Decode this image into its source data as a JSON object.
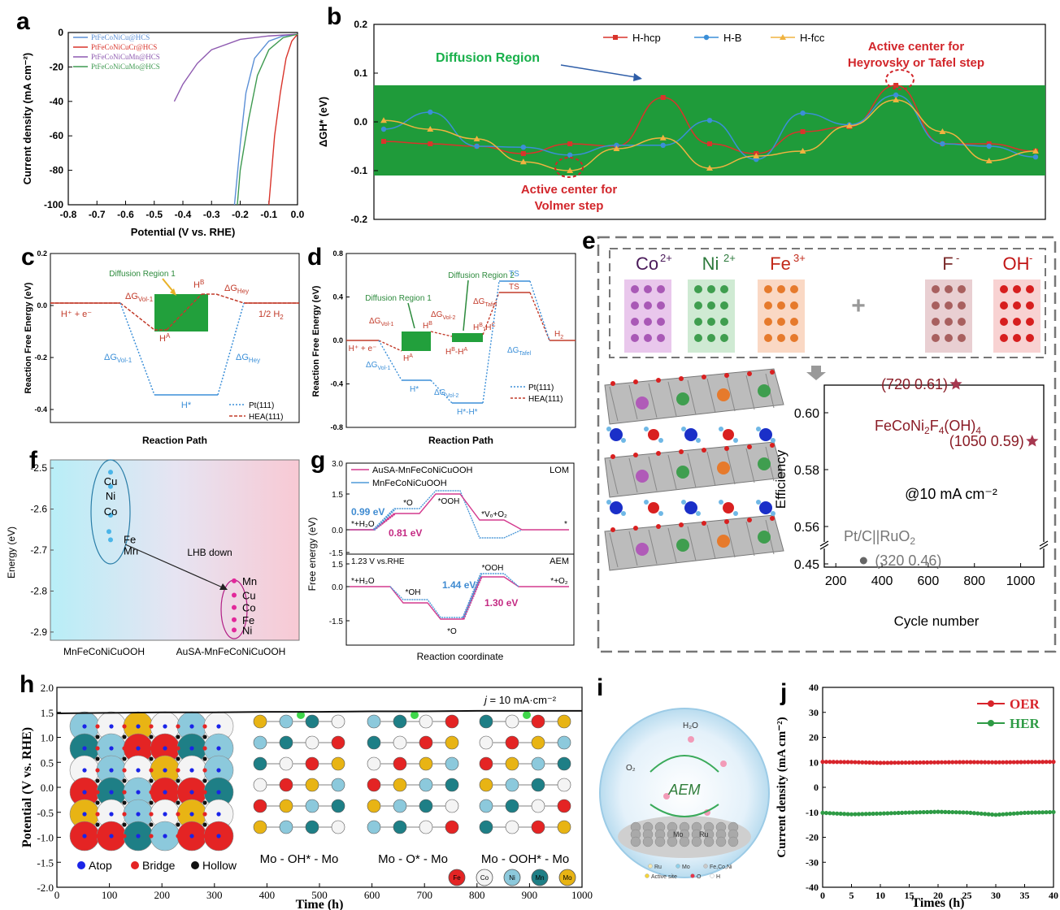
{
  "chart_data": [
    {
      "panel": "a",
      "type": "line",
      "xlabel": "Potential (V vs. RHE)",
      "ylabel": "Current density (mA cm⁻²)",
      "xlim": [
        -0.8,
        0.0
      ],
      "ylim": [
        -100,
        0
      ],
      "xticks": [
        "-0.8",
        "-0.7",
        "-0.6",
        "-0.5",
        "-0.4",
        "-0.3",
        "-0.2",
        "-0.1",
        "0.0"
      ],
      "yticks": [
        "0",
        "-20",
        "-40",
        "-60",
        "-80",
        "-100"
      ],
      "legend_position": "top-left",
      "series": [
        {
          "name": "PtFeCoNiCu@HCS",
          "color": "#5b8fd6",
          "x": [
            0.0,
            -0.05,
            -0.1,
            -0.15,
            -0.18,
            -0.2,
            -0.22
          ],
          "y": [
            -1,
            -2,
            -5,
            -15,
            -35,
            -65,
            -100
          ]
        },
        {
          "name": "PtFeCoNiCuCr@HCS",
          "color": "#d9342b",
          "x": [
            0.0,
            -0.02,
            -0.04,
            -0.06,
            -0.08,
            -0.09,
            -0.1
          ],
          "y": [
            -1,
            -5,
            -15,
            -35,
            -60,
            -80,
            -100
          ]
        },
        {
          "name": "PtFeCoNiCuMn@HCS",
          "color": "#8e5ab0",
          "x": [
            0.0,
            -0.1,
            -0.2,
            -0.3,
            -0.35,
            -0.4,
            -0.43
          ],
          "y": [
            -1,
            -2,
            -4,
            -10,
            -18,
            -30,
            -40
          ]
        },
        {
          "name": "PtFeCoNiCuMo@HCS",
          "color": "#3e9a50",
          "x": [
            0.0,
            -0.05,
            -0.1,
            -0.14,
            -0.17,
            -0.2,
            -0.21
          ],
          "y": [
            -1,
            -3,
            -10,
            -25,
            -50,
            -80,
            -100
          ]
        }
      ]
    },
    {
      "panel": "b",
      "type": "line",
      "ylabel": "ΔGH* (eV)",
      "ylim": [
        -0.2,
        0.2
      ],
      "yticks": [
        "0.2",
        "0.1",
        "0.0",
        "-0.1",
        "-0.2"
      ],
      "band": [
        -0.11,
        0.075
      ],
      "band_label": "Diffusion Region",
      "annotations": [
        "Active center for",
        "Heyrovsky or Tafel step",
        "Active center for",
        "Volmer step"
      ],
      "legend_position": "top-center",
      "series": [
        {
          "name": "H-hcp",
          "color": "#d9342b",
          "values": [
            -0.04,
            -0.045,
            -0.05,
            -0.065,
            -0.045,
            -0.05,
            0.05,
            -0.045,
            -0.065,
            -0.02,
            -0.01,
            0.075,
            -0.045,
            -0.045,
            -0.06
          ]
        },
        {
          "name": "H-B",
          "color": "#3b8fd8",
          "values": [
            -0.015,
            0.02,
            -0.05,
            -0.052,
            -0.068,
            -0.048,
            -0.048,
            0.003,
            -0.077,
            0.018,
            -0.006,
            0.055,
            -0.045,
            -0.05,
            -0.072
          ]
        },
        {
          "name": "H-fcc",
          "color": "#f0b340",
          "values": [
            0.003,
            -0.015,
            -0.035,
            -0.082,
            -0.1,
            -0.055,
            -0.033,
            -0.095,
            -0.07,
            -0.06,
            -0.008,
            0.045,
            -0.02,
            -0.08,
            -0.06
          ]
        }
      ]
    },
    {
      "panel": "c",
      "type": "line",
      "xlabel": "Reaction Path",
      "ylabel": "Reaction Free Energy (eV)",
      "ylim": [
        -0.45,
        0.2
      ],
      "yticks": [
        "0.2",
        "0.0",
        "-0.2",
        "-0.4"
      ],
      "texts": {
        "diffusion": "Diffusion Region 1",
        "hb": "H",
        "hb_sup": "B",
        "ha": "H",
        "ha_sup": "A",
        "hplus": "H⁺ + e⁻",
        "half_h2": "1/2 H",
        "half_h2_sub": "2",
        "hstar": "H*",
        "dg": "ΔG",
        "vol1": "Vol-1",
        "hey": "Hey"
      },
      "legend_position": "bottom-right",
      "series": [
        {
          "name": "Pt(111)",
          "color": "#3b8fd8",
          "values": [
            0.0,
            -0.37,
            -0.37,
            0.0
          ]
        },
        {
          "name": "HEA(111)",
          "color": "#c23b2a",
          "values": [
            0.0,
            -0.1,
            0.08,
            0.0
          ]
        }
      ]
    },
    {
      "panel": "d",
      "type": "line",
      "xlabel": "Reaction Path",
      "ylabel": "Reaction Free Energy (eV)",
      "ylim": [
        -0.8,
        0.8
      ],
      "yticks": [
        "0.8",
        "0.4",
        "0.0",
        "-0.4",
        "-0.8"
      ],
      "texts": {
        "dr1": "Diffusion Region 1",
        "dr2": "Diffusion Region 2",
        "dg": "ΔG",
        "vol1": "Vol-1",
        "vol2": "Vol-2",
        "tafel": "Tafel",
        "hb": "H",
        "hb_sup": "B",
        "hbc": "H",
        "hbc_sup": "B",
        "hbc2_sup": "C",
        "hba": "H",
        "hba_sup": "B",
        "hba2_sup": "A",
        "ha": "H",
        "ha_sup": "A",
        "hplus": "H⁺ + e⁻",
        "hstar": "H*",
        "hstarstar": "H*-H*",
        "ts": "TS",
        "h2": "H",
        "h2_sub": "2"
      },
      "legend_position": "bottom-right",
      "series": [
        {
          "name": "Pt(111)",
          "color": "#3b8fd8",
          "values": [
            0.0,
            -0.37,
            -0.57,
            0.55,
            0.0
          ]
        },
        {
          "name": "HEA(111)",
          "color": "#c23b2a",
          "values": [
            0.0,
            -0.08,
            -0.02,
            0.35,
            0.0
          ]
        }
      ]
    },
    {
      "panel": "e",
      "type": "scatter",
      "xlabel": "Cycle number",
      "ylabel": "Efficiency",
      "xticks": [
        "200",
        "400",
        "600",
        "800",
        "1000"
      ],
      "yticks": [
        "0.60",
        "0.58",
        "0.56",
        "0.45"
      ],
      "ions": [
        "Co",
        "2+",
        "Ni",
        "2+",
        "Fe",
        "3+",
        "F",
        "-",
        "OH",
        "-"
      ],
      "condition": "@10 mA cm⁻²",
      "series": [
        {
          "name": "FeCoNi₂F₄(OH)₄",
          "color": "#a6374f",
          "points": [
            {
              "x": 720,
              "y": 0.61,
              "label": "(720  0.61)"
            },
            {
              "x": 1050,
              "y": 0.59,
              "label": "(1050  0.59)"
            }
          ]
        },
        {
          "name": "Pt/C||RuO₂",
          "color": "#666666",
          "points": [
            {
              "x": 320,
              "y": 0.46,
              "label": "(320  0.46)"
            }
          ]
        }
      ],
      "series_label_main": "FeCoNi",
      "series_label_sub1": "2",
      "series_label_mid": "F",
      "series_label_sub2": "4",
      "series_label_end": "(OH)",
      "series_label_sub3": "4",
      "series2_label_main": "Pt/C||RuO",
      "series2_label_sub": "2"
    },
    {
      "panel": "f",
      "type": "scatter",
      "ylabel": "Energy (eV)",
      "ylim": [
        -2.92,
        -2.48
      ],
      "yticks": [
        "-2.5",
        "-2.6",
        "-2.7",
        "-2.8",
        "-2.9"
      ],
      "categories": [
        "MnFeCoNiCuOOH",
        "AuSA-MnFeCoNiCuOOH"
      ],
      "arrow_label": "LHB down",
      "groups": [
        {
          "labels": [
            "Cu",
            "Ni",
            "Co",
            "Fe",
            "Mn"
          ],
          "values": [
            -2.51,
            -2.545,
            -2.615,
            -2.655,
            -2.675
          ]
        },
        {
          "labels": [
            "Mn",
            "Cu",
            "Co",
            "Fe",
            "Ni"
          ],
          "values": [
            -2.775,
            -2.81,
            -2.84,
            -2.87,
            -2.895
          ]
        }
      ]
    },
    {
      "panel": "g",
      "type": "line",
      "xlabel": "Reaction coordinate",
      "ylabel": "Free energy (eV)",
      "top": {
        "tag": "LOM",
        "yticks": [
          "3.0",
          "1.5",
          "0.0",
          "-1.5"
        ],
        "labels": [
          "*+H₂O",
          "*O",
          "*OOH",
          "*Vₒ+O₂",
          "*"
        ],
        "barrier1": "0.99 eV",
        "barrier2": "0.81 eV"
      },
      "bottom": {
        "tag": "AEM",
        "cond": "1.23 V vs.RHE",
        "yticks": [
          "1.5",
          "0.0",
          "-1.5"
        ],
        "labels": [
          "*+H₂O",
          "*OH",
          "*O",
          "*OOH",
          "*+O₂"
        ],
        "barrier1": "1.44 eV",
        "barrier2": "1.30 eV"
      },
      "series": [
        {
          "name": "AuSA-MnFeCoNiCuOOH",
          "color": "#d43a8e"
        },
        {
          "name": "MnFeCoNiCuOOH",
          "color": "#4f9ad8"
        }
      ]
    },
    {
      "panel": "h",
      "type": "line",
      "xlabel": "Time (h)",
      "ylabel": "Potential (V vs. RHE)",
      "xlim": [
        0,
        1000
      ],
      "ylim": [
        -2.0,
        2.0
      ],
      "xticks": [
        "0",
        "100",
        "200",
        "300",
        "400",
        "500",
        "600",
        "700",
        "800",
        "900",
        "1000"
      ],
      "yticks": [
        "2.0",
        "1.5",
        "1.0",
        "0.5",
        "0.0",
        "-0.5",
        "-1.0",
        "-1.5",
        "-2.0"
      ],
      "condition_j": "j",
      "condition_rest": " = 10 mA·cm⁻²",
      "sites": [
        "Atop",
        "Bridge",
        "Hollow"
      ],
      "structures": [
        "Mo - OH* - Mo",
        "Mo - O* - Mo",
        "Mo - OOH* - Mo"
      ],
      "elements": [
        "Fe",
        "Co",
        "Ni",
        "Mn",
        "Mo"
      ],
      "series": [
        {
          "name": "potential",
          "color": "#111111",
          "x": [
            0,
            100,
            200,
            300,
            400,
            500,
            600,
            700,
            800,
            900,
            1000
          ],
          "y": [
            1.48,
            1.49,
            1.5,
            1.5,
            1.51,
            1.51,
            1.52,
            1.52,
            1.53,
            1.53,
            1.53
          ]
        }
      ]
    },
    {
      "panel": "i",
      "type": "table",
      "labels": {
        "h2o": "H₂O",
        "o2": "O₂",
        "aem": "AEM",
        "mo": "Mo",
        "ru": "Ru"
      },
      "legend": [
        "Ru",
        "Mo",
        "Fe,Co,Ni",
        "Active site",
        "O",
        "H"
      ]
    },
    {
      "panel": "j",
      "type": "line",
      "xlabel": "Times (h)",
      "ylabel": "Current density (mA cm⁻²)",
      "xlim": [
        0,
        40
      ],
      "ylim": [
        -40,
        40
      ],
      "xticks": [
        "0",
        "5",
        "10",
        "15",
        "20",
        "25",
        "30",
        "35",
        "40"
      ],
      "yticks": [
        "40",
        "30",
        "20",
        "10",
        "0",
        "-10",
        "-20",
        "-30",
        "-40"
      ],
      "legend_position": "top-right",
      "series": [
        {
          "name": "OER",
          "color": "#d8242b",
          "x": [
            0,
            5,
            10,
            15,
            20,
            25,
            30,
            35,
            40
          ],
          "y": [
            10.2,
            10.1,
            9.8,
            9.9,
            10.0,
            10.1,
            10.0,
            10.1,
            10.2
          ]
        },
        {
          "name": "HER",
          "color": "#2e9b45",
          "x": [
            0,
            5,
            10,
            15,
            20,
            25,
            30,
            35,
            40
          ],
          "y": [
            -10.2,
            -10.8,
            -10.5,
            -10.1,
            -9.8,
            -10.1,
            -11.0,
            -10.2,
            -9.9
          ]
        }
      ]
    }
  ]
}
